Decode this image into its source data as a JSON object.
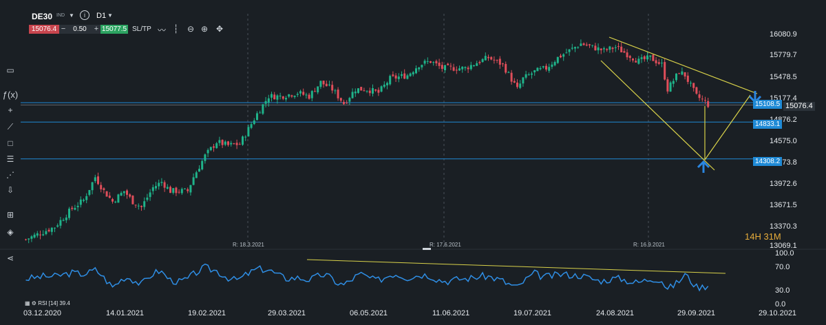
{
  "toolbar": {
    "symbol": "DE30",
    "symbol_class": "IND",
    "timeframe": "D1",
    "sell_price": "15076.4",
    "buy_price": "15077.5",
    "volume": "0.50",
    "minus": "−",
    "plus": "+",
    "sltp": "SL/TP",
    "info": "i"
  },
  "price_axis": [
    "16080.9",
    "15779.7",
    "15478.5",
    "15177.4",
    "14876.2",
    "14575.0",
    "14273.8",
    "13972.6",
    "13671.5",
    "13370.3",
    "13069.1"
  ],
  "date_axis": [
    "03.12.2020",
    "14.01.2021",
    "19.02.2021",
    "29.03.2021",
    "06.05.2021",
    "11.06.2021",
    "19.07.2021",
    "24.08.2021",
    "29.09.2021",
    "29.10.2021"
  ],
  "rsi_axis": [
    "100.0",
    "70.0",
    "30.0",
    "0.0"
  ],
  "levels": [
    {
      "label": "15108.5",
      "price": 15108.5
    },
    {
      "label": "14833.1",
      "price": 14833.1
    },
    {
      "label": "14308.2",
      "price": 14308.2
    }
  ],
  "current_price": "15076.4",
  "rollovers": [
    "R: 18.3.2021",
    "R: 17.6.2021",
    "R: 16.9.2021"
  ],
  "timer": "14H 31M",
  "rsi_label": "RSI [14] 39.4",
  "colors": {
    "up": "#1fb38a",
    "down": "#e04e5a",
    "line": "#1f8ad6",
    "trend": "#d9d24a",
    "rsi": "#2f8fe6",
    "bg": "#1a1f24"
  },
  "chart_data": {
    "type": "candlestick",
    "title": "DE30 D1",
    "ylim": [
      13069.1,
      16080.9
    ],
    "close_path": [
      [
        0,
        13160
      ],
      [
        10,
        13340
      ],
      [
        16,
        13600
      ],
      [
        20,
        13720
      ],
      [
        24,
        14050
      ],
      [
        27,
        13850
      ],
      [
        30,
        13700
      ],
      [
        34,
        13850
      ],
      [
        37,
        13700
      ],
      [
        40,
        13620
      ],
      [
        44,
        13900
      ],
      [
        47,
        13980
      ],
      [
        50,
        13850
      ],
      [
        53,
        13850
      ],
      [
        56,
        13850
      ],
      [
        58,
        14050
      ],
      [
        62,
        14350
      ],
      [
        66,
        14550
      ],
      [
        70,
        14500
      ],
      [
        74,
        14520
      ],
      [
        80,
        14950
      ],
      [
        84,
        15200
      ],
      [
        88,
        15200
      ],
      [
        94,
        15250
      ],
      [
        98,
        15200
      ],
      [
        102,
        15400
      ],
      [
        106,
        15300
      ],
      [
        110,
        15100
      ],
      [
        114,
        15300
      ],
      [
        118,
        15300
      ],
      [
        122,
        15250
      ],
      [
        126,
        15450
      ],
      [
        132,
        15500
      ],
      [
        136,
        15650
      ],
      [
        140,
        15700
      ],
      [
        144,
        15600
      ],
      [
        148,
        15600
      ],
      [
        152,
        15600
      ],
      [
        156,
        15680
      ],
      [
        160,
        15750
      ],
      [
        165,
        15650
      ],
      [
        170,
        15300
      ],
      [
        172,
        15450
      ],
      [
        176,
        15550
      ],
      [
        180,
        15600
      ],
      [
        184,
        15750
      ],
      [
        188,
        15850
      ],
      [
        192,
        15950
      ],
      [
        196,
        15900
      ],
      [
        200,
        15850
      ],
      [
        204,
        15900
      ],
      [
        208,
        15800
      ],
      [
        212,
        15700
      ],
      [
        216,
        15750
      ],
      [
        220,
        15650
      ],
      [
        222,
        15300
      ],
      [
        226,
        15550
      ],
      [
        228,
        15500
      ],
      [
        232,
        15200
      ],
      [
        234,
        15150
      ],
      [
        236,
        15080
      ]
    ]
  }
}
